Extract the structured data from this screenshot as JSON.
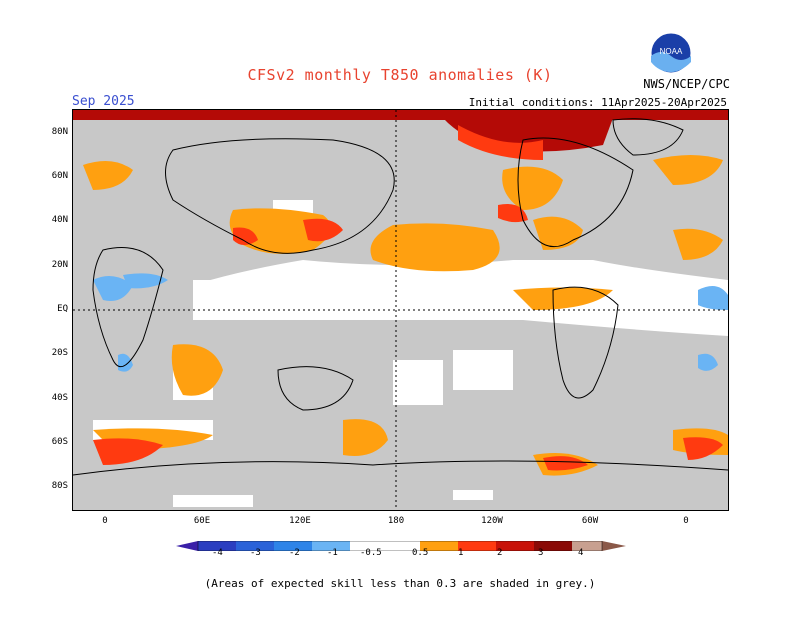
{
  "header": {
    "title": "CFSv2 monthly T850 anomalies (K)",
    "month": "Sep 2025",
    "initial_conditions": "Initial conditions: 11Apr2025-20Apr2025",
    "agency": "NWS/NCEP/CPC",
    "logo_text": "NOAA"
  },
  "axes": {
    "lat_labels": [
      "80N",
      "60N",
      "40N",
      "20N",
      "EQ",
      "20S",
      "40S",
      "60S",
      "80S"
    ],
    "lon_labels": [
      "0",
      "60E",
      "120E",
      "180",
      "120W",
      "60W",
      "0"
    ]
  },
  "colorbar": {
    "ticks": [
      "-4",
      "-3",
      "-2",
      "-1",
      "-0.5",
      "0.5",
      "1",
      "2",
      "3",
      "4"
    ],
    "colors": [
      "#3a20a8",
      "#2a4fc8",
      "#2e78e0",
      "#4a9ef0",
      "#8cc6f8",
      "#ffffff",
      "#ff9f0a",
      "#ff3a10",
      "#c81208",
      "#8a0a06",
      "#c8a090",
      "#8a5848"
    ]
  },
  "footnote": "(Areas of expected skill less than 0.3 are shaded in grey.)",
  "map": {
    "grey_color": "#c8c8c8",
    "anomaly_colors": {
      "weak_warm": "#ffa010",
      "moderate_warm": "#ff3a10",
      "strong_warm": "#b40a06",
      "weak_cold": "#8cc6f8",
      "moderate_cold": "#4a9ef0"
    }
  }
}
